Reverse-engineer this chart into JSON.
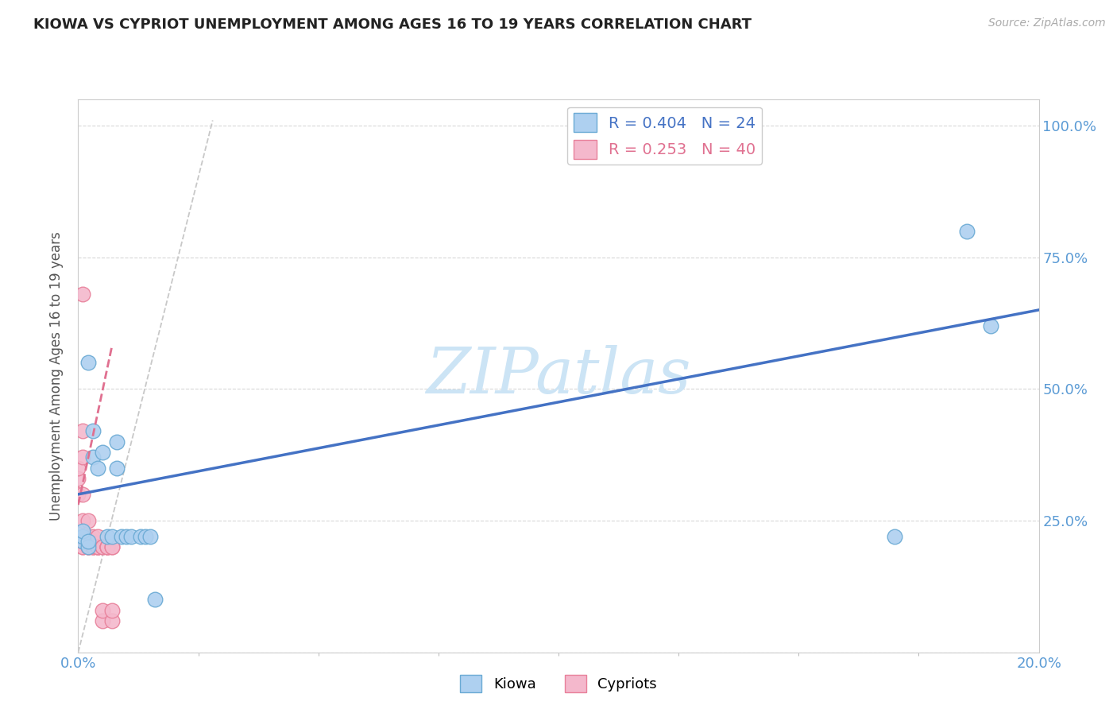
{
  "title": "KIOWA VS CYPRIOT UNEMPLOYMENT AMONG AGES 16 TO 19 YEARS CORRELATION CHART",
  "source": "Source: ZipAtlas.com",
  "ylabel_label": "Unemployment Among Ages 16 to 19 years",
  "kiowa_R": 0.404,
  "kiowa_N": 24,
  "cypriot_R": 0.253,
  "cypriot_N": 40,
  "kiowa_color": "#aed0f0",
  "cypriot_color": "#f4b8cc",
  "kiowa_edge_color": "#6aaad4",
  "cypriot_edge_color": "#e8809a",
  "kiowa_line_color": "#4472c4",
  "cypriot_line_color": "#e07090",
  "ref_line_color": "#c8c8c8",
  "watermark_color": "#cce4f5",
  "tick_label_color": "#5b9bd5",
  "kiowa_x": [
    0.001,
    0.001,
    0.001,
    0.002,
    0.002,
    0.002,
    0.003,
    0.003,
    0.004,
    0.005,
    0.006,
    0.007,
    0.008,
    0.008,
    0.009,
    0.01,
    0.011,
    0.013,
    0.014,
    0.015,
    0.016,
    0.17,
    0.185,
    0.19
  ],
  "kiowa_y": [
    0.21,
    0.22,
    0.23,
    0.2,
    0.21,
    0.55,
    0.37,
    0.42,
    0.35,
    0.38,
    0.22,
    0.22,
    0.35,
    0.4,
    0.22,
    0.22,
    0.22,
    0.22,
    0.22,
    0.22,
    0.1,
    0.22,
    0.8,
    0.62
  ],
  "cypriot_x": [
    0.0,
    0.0,
    0.0,
    0.001,
    0.001,
    0.001,
    0.001,
    0.001,
    0.001,
    0.001,
    0.001,
    0.001,
    0.002,
    0.002,
    0.002,
    0.002,
    0.002,
    0.002,
    0.003,
    0.003,
    0.003,
    0.003,
    0.003,
    0.004,
    0.004,
    0.004,
    0.004,
    0.004,
    0.005,
    0.005,
    0.005,
    0.005,
    0.006,
    0.006,
    0.006,
    0.006,
    0.007,
    0.007,
    0.007,
    0.007
  ],
  "cypriot_y": [
    0.3,
    0.33,
    0.35,
    0.2,
    0.2,
    0.21,
    0.22,
    0.25,
    0.3,
    0.37,
    0.42,
    0.68,
    0.2,
    0.2,
    0.2,
    0.21,
    0.22,
    0.25,
    0.2,
    0.2,
    0.2,
    0.21,
    0.22,
    0.2,
    0.2,
    0.2,
    0.2,
    0.22,
    0.06,
    0.08,
    0.2,
    0.2,
    0.2,
    0.2,
    0.2,
    0.2,
    0.06,
    0.08,
    0.2,
    0.2
  ],
  "xlim": [
    0.0,
    0.2
  ],
  "ylim": [
    0.0,
    1.05
  ],
  "kiowa_line_x0": 0.0,
  "kiowa_line_x1": 0.2,
  "kiowa_line_y0": 0.3,
  "kiowa_line_y1": 0.65,
  "cypriot_line_x0": 0.0,
  "cypriot_line_x1": 0.007,
  "cypriot_line_y0": 0.28,
  "cypriot_line_y1": 0.58,
  "ref_line_x0": 0.0,
  "ref_line_x1": 0.028,
  "ref_line_y0": 0.0,
  "ref_line_y1": 1.01,
  "background_color": "#ffffff",
  "grid_color": "#d8d8d8"
}
